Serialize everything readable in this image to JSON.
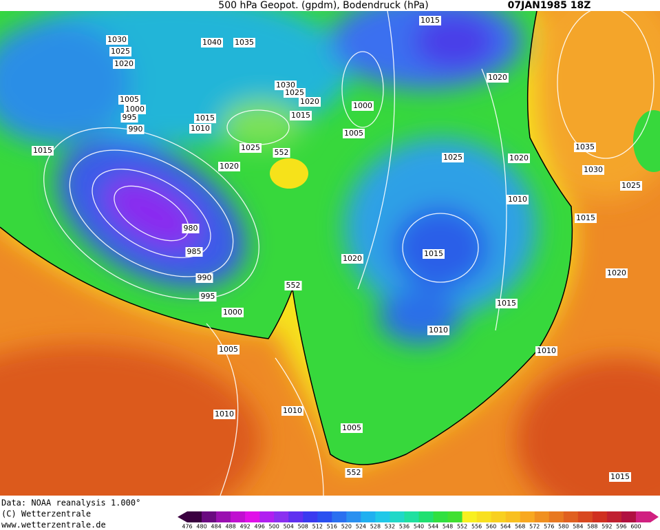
{
  "header": {
    "title": "500 hPa Geopot. (gpdm), Bodendruck (hPa)",
    "date": "07JAN1985 18Z"
  },
  "map": {
    "labels": [
      "1030",
      "1040",
      "1035",
      "1015",
      "1025",
      "1020",
      "1020",
      "1030",
      "1025",
      "1020",
      "1000",
      "1005",
      "1000",
      "995",
      "990",
      "1015",
      "1010",
      "1015",
      "1005",
      "1015",
      "1025",
      "552",
      "1020",
      "1025",
      "1020",
      "1035",
      "1030",
      "1025",
      "1010",
      "1015",
      "980",
      "985",
      "1020",
      "1015",
      "990",
      "1020",
      "552",
      "995",
      "1015",
      "1000",
      "1010",
      "1005",
      "1010",
      "1010",
      "1010",
      "1005",
      "552",
      "1015"
    ]
  },
  "footer": {
    "lines": [
      "Data: NOAA reanalysis 1.000°",
      "(C) Wetterzentrale",
      "www.wetterzentrale.de"
    ]
  },
  "colorbar": {
    "labels": [
      476,
      480,
      484,
      488,
      492,
      496,
      500,
      504,
      508,
      512,
      516,
      520,
      524,
      528,
      532,
      536,
      540,
      544,
      548,
      552,
      556,
      560,
      564,
      568,
      572,
      576,
      580,
      584,
      588,
      592,
      596,
      600
    ]
  }
}
